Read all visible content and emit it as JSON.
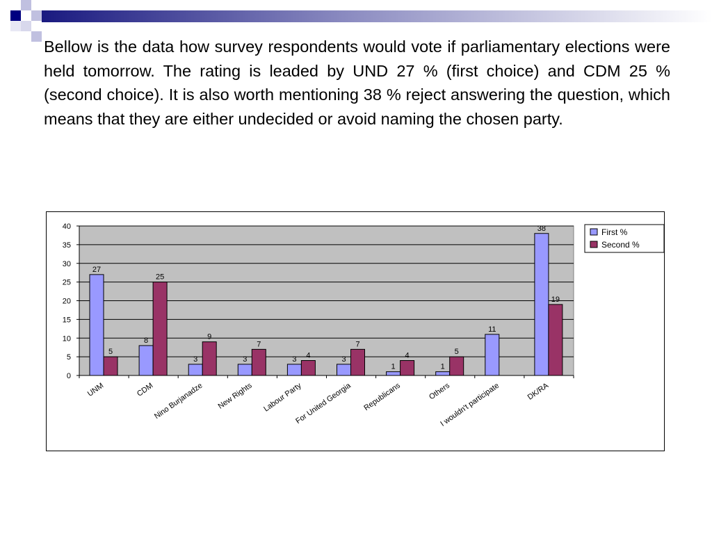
{
  "slide": {
    "text": "Bellow is the data how survey respondents would vote if parliamentary elections were held tomorrow. The rating is leaded by UND 27 % (first choice) and CDM 25 % (second choice). It is also worth mentioning 38 % reject answering the question, which means that they are either undecided or avoid naming the chosen party."
  },
  "chart_data": {
    "type": "bar",
    "title": "",
    "xlabel": "",
    "ylabel": "",
    "categories": [
      "UNM",
      "CDM",
      "Nino Burjanadze",
      "New Rights",
      "Labour Party",
      "For United Georgia",
      "Republicans",
      "Others",
      "I wouldn't participate",
      "DK/RA"
    ],
    "series": [
      {
        "name": "First %",
        "color": "#9999ff",
        "values": [
          27,
          8,
          3,
          3,
          3,
          3,
          1,
          1,
          11,
          38
        ]
      },
      {
        "name": "Second %",
        "color": "#993366",
        "values": [
          5,
          25,
          9,
          7,
          4,
          7,
          4,
          5,
          null,
          19
        ]
      }
    ],
    "ylim": [
      0,
      40
    ],
    "yticks": [
      0,
      5,
      10,
      15,
      20,
      25,
      30,
      35,
      40
    ],
    "grid": true,
    "plot_background": "#c0c0c0",
    "legend_position": "top-right"
  }
}
